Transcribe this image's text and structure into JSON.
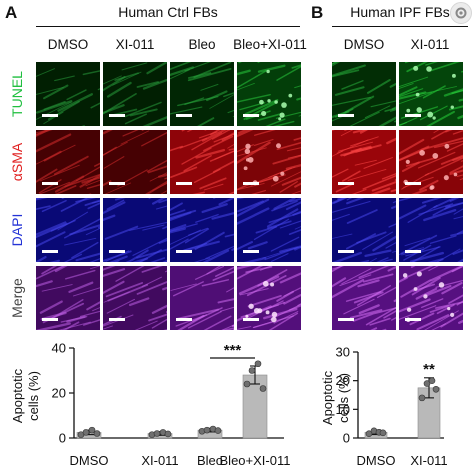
{
  "panels": {
    "A": {
      "letter": "A",
      "title": "Human Ctrl FBs",
      "columns": [
        "DMSO",
        "XI-011",
        "Bleo",
        "Bleo+XI-011"
      ]
    },
    "B": {
      "letter": "B",
      "title": "Human IPF FBs",
      "columns": [
        "DMSO",
        "XI-011"
      ]
    }
  },
  "rows": [
    {
      "label": "TUNEL",
      "color": "#1fbf3f"
    },
    {
      "label": "αSMA",
      "color": "#e02020"
    },
    {
      "label": "DAPI",
      "color": "#2433d6"
    },
    {
      "label": "Merge",
      "color": "#444444"
    }
  ],
  "colors": {
    "bar_fill": "#b9b9b9",
    "point_fill": "#6f6f6f",
    "tunel": "#1fbf3f",
    "asma": "#e02020",
    "dapi": "#2433d6"
  },
  "corner_icon": "gear-badge-icon",
  "chart_data": [
    {
      "type": "bar",
      "categories": [
        "DMSO",
        "XI-011",
        "Bleo",
        "Bleo+XI-011"
      ],
      "values": [
        2.5,
        2,
        3.5,
        28
      ],
      "errors": [
        1,
        0.8,
        0.8,
        4
      ],
      "points": [
        [
          1.5,
          2.5,
          3.5,
          2.0
        ],
        [
          1.5,
          2.0,
          2.5,
          1.8
        ],
        [
          3.0,
          3.5,
          4.0,
          3.3
        ],
        [
          24,
          30,
          33,
          22
        ]
      ],
      "ylabel": "Apoptotic cells (%)",
      "ylim": [
        0,
        40
      ],
      "yticks": [
        0,
        20,
        40
      ],
      "annotation": {
        "text": "***",
        "from": 2,
        "to": 3
      }
    },
    {
      "type": "bar",
      "categories": [
        "DMSO",
        "XI-011"
      ],
      "values": [
        2,
        17.5
      ],
      "errors": [
        0.8,
        3.5
      ],
      "points": [
        [
          1.5,
          2.5,
          2.0,
          1.8
        ],
        [
          14,
          19,
          20,
          17
        ]
      ],
      "ylabel": "Apoptotic cells (%)",
      "ylim": [
        0,
        30
      ],
      "yticks": [
        0,
        10,
        20,
        30
      ],
      "annotation": {
        "text": "**",
        "from": 1,
        "to": 1
      }
    }
  ]
}
